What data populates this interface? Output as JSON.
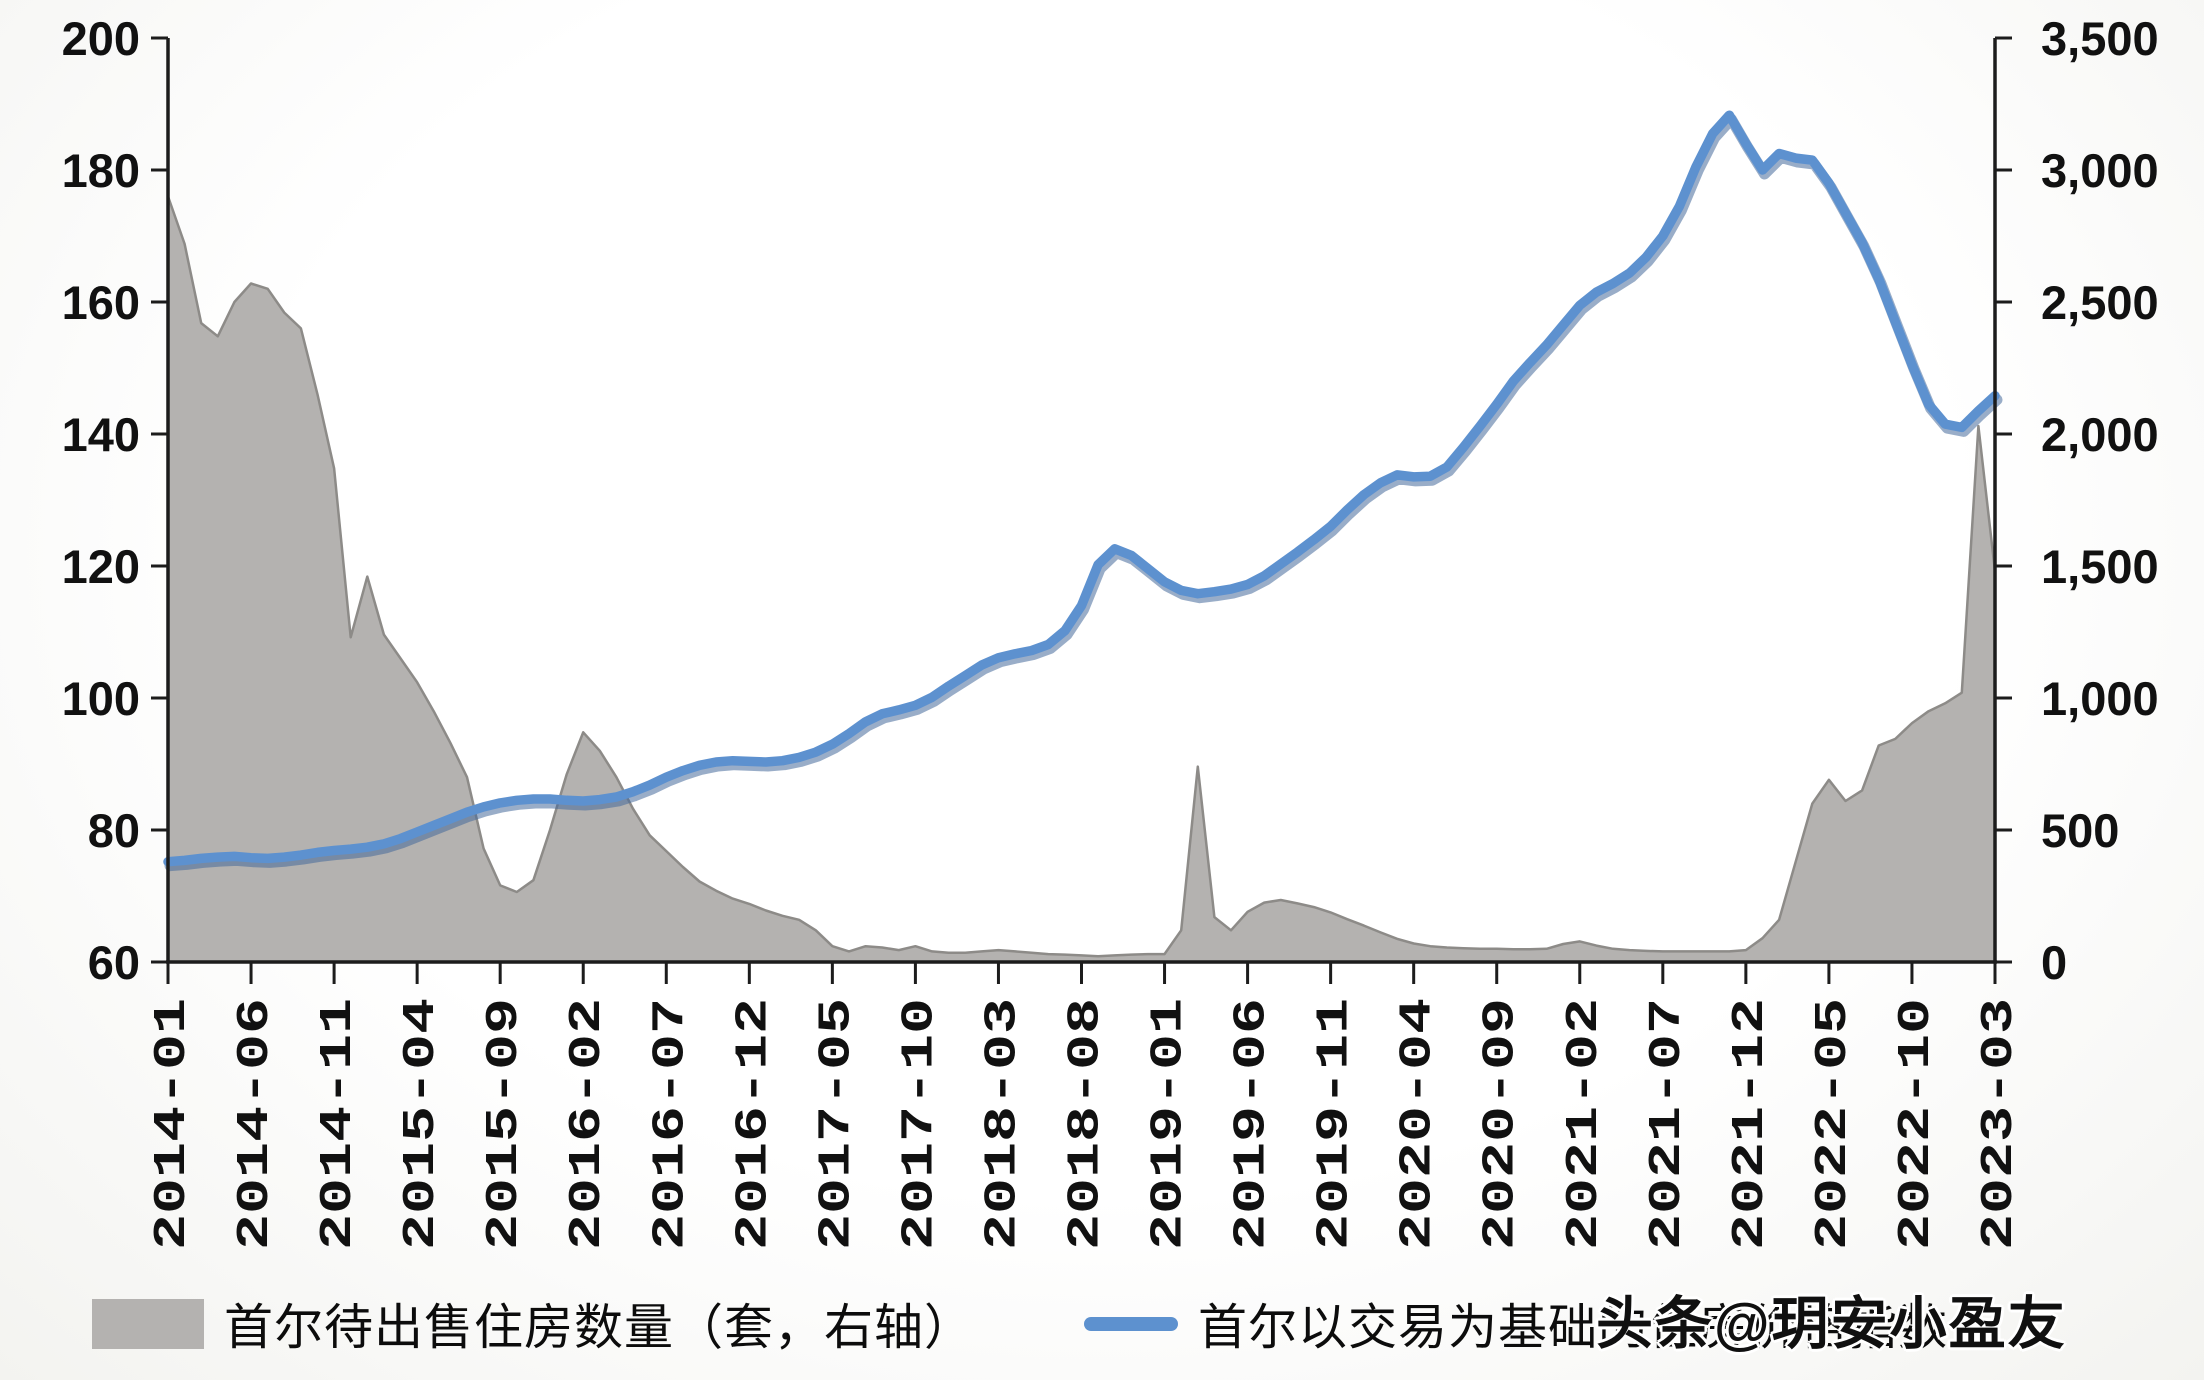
{
  "chart_data": {
    "type": "combo",
    "title": "",
    "grid": false,
    "legend_position": "bottom",
    "x_months": [
      "2014-01",
      "2014-02",
      "2014-03",
      "2014-04",
      "2014-05",
      "2014-06",
      "2014-07",
      "2014-08",
      "2014-09",
      "2014-10",
      "2014-11",
      "2014-12",
      "2015-01",
      "2015-02",
      "2015-03",
      "2015-04",
      "2015-05",
      "2015-06",
      "2015-07",
      "2015-08",
      "2015-09",
      "2015-10",
      "2015-11",
      "2015-12",
      "2016-01",
      "2016-02",
      "2016-03",
      "2016-04",
      "2016-05",
      "2016-06",
      "2016-07",
      "2016-08",
      "2016-09",
      "2016-10",
      "2016-11",
      "2016-12",
      "2017-01",
      "2017-02",
      "2017-03",
      "2017-04",
      "2017-05",
      "2017-06",
      "2017-07",
      "2017-08",
      "2017-09",
      "2017-10",
      "2017-11",
      "2017-12",
      "2018-01",
      "2018-02",
      "2018-03",
      "2018-04",
      "2018-05",
      "2018-06",
      "2018-07",
      "2018-08",
      "2018-09",
      "2018-10",
      "2018-11",
      "2018-12",
      "2019-01",
      "2019-02",
      "2019-03",
      "2019-04",
      "2019-05",
      "2019-06",
      "2019-07",
      "2019-08",
      "2019-09",
      "2019-10",
      "2019-11",
      "2019-12",
      "2020-01",
      "2020-02",
      "2020-03",
      "2020-04",
      "2020-05",
      "2020-06",
      "2020-07",
      "2020-08",
      "2020-09",
      "2020-10",
      "2020-11",
      "2020-12",
      "2021-01",
      "2021-02",
      "2021-03",
      "2021-04",
      "2021-05",
      "2021-06",
      "2021-07",
      "2021-08",
      "2021-09",
      "2021-10",
      "2021-11",
      "2021-12",
      "2022-01",
      "2022-02",
      "2022-03",
      "2022-04",
      "2022-05",
      "2022-06",
      "2022-07",
      "2022-08",
      "2022-09",
      "2022-10",
      "2022-11",
      "2022-12",
      "2023-01",
      "2023-02",
      "2023-03"
    ],
    "x_axis_tick_labels": [
      "2014-01",
      "2014-06",
      "2014-11",
      "2015-04",
      "2015-09",
      "2016-02",
      "2016-07",
      "2016-12",
      "2017-05",
      "2017-10",
      "2018-03",
      "2018-08",
      "2019-01",
      "2019-06",
      "2019-11",
      "2020-04",
      "2020-09",
      "2021-02",
      "2021-07",
      "2021-12",
      "2022-05",
      "2022-10",
      "2023-03"
    ],
    "left_axis": {
      "min": 60,
      "max": 200,
      "tick_step": 20,
      "tick_labels": [
        "60",
        "80",
        "100",
        "120",
        "140",
        "160",
        "180",
        "200"
      ]
    },
    "right_axis": {
      "min": 0,
      "max": 3500,
      "tick_step": 500,
      "tick_labels": [
        "0",
        "500",
        "1,000",
        "1,500",
        "2,000",
        "2,500",
        "3,000",
        "3,500"
      ]
    },
    "series": [
      {
        "name": "首尔待出售住房数量（套，右轴）",
        "type": "area",
        "axis": "right",
        "color": "#b4b2b0",
        "edge_color": "#8d8b88",
        "values": [
          2900,
          2720,
          2420,
          2370,
          2500,
          2570,
          2550,
          2460,
          2400,
          2150,
          1870,
          1230,
          1460,
          1240,
          1150,
          1060,
          950,
          830,
          700,
          430,
          290,
          265,
          310,
          500,
          710,
          870,
          800,
          700,
          580,
          480,
          420,
          360,
          305,
          270,
          240,
          220,
          195,
          175,
          160,
          120,
          60,
          40,
          60,
          55,
          45,
          60,
          40,
          35,
          35,
          40,
          45,
          40,
          35,
          30,
          28,
          25,
          22,
          25,
          28,
          30,
          30,
          120,
          740,
          170,
          120,
          190,
          225,
          235,
          222,
          208,
          188,
          162,
          138,
          112,
          88,
          70,
          60,
          55,
          52,
          50,
          50,
          48,
          48,
          50,
          68,
          78,
          62,
          50,
          45,
          42,
          40,
          40,
          40,
          40,
          40,
          45,
          90,
          160,
          380,
          600,
          690,
          610,
          650,
          820,
          845,
          905,
          950,
          980,
          1020,
          2030,
          1480
        ]
      },
      {
        "name": "首尔以交易为基础的住房价格指数",
        "type": "line",
        "axis": "left",
        "color": "#5d91cf",
        "shadow_color": "#46699b",
        "values": [
          75.2,
          75.4,
          75.7,
          75.9,
          76.0,
          75.8,
          75.7,
          75.9,
          76.2,
          76.6,
          76.9,
          77.1,
          77.4,
          77.9,
          78.7,
          79.7,
          80.7,
          81.7,
          82.7,
          83.5,
          84.1,
          84.5,
          84.7,
          84.7,
          84.5,
          84.4,
          84.6,
          85.0,
          85.8,
          86.8,
          88.0,
          89.0,
          89.8,
          90.3,
          90.5,
          90.4,
          90.3,
          90.5,
          91.0,
          91.8,
          93.0,
          94.6,
          96.4,
          97.6,
          98.2,
          98.9,
          100.1,
          101.8,
          103.4,
          105.0,
          106.1,
          106.7,
          107.2,
          108.1,
          110.2,
          114.0,
          120.2,
          122.6,
          121.6,
          119.6,
          117.6,
          116.3,
          115.8,
          116.1,
          116.5,
          117.2,
          118.5,
          120.3,
          122.1,
          124.0,
          126.0,
          128.5,
          130.8,
          132.6,
          133.8,
          133.5,
          133.6,
          135.0,
          138.0,
          141.2,
          144.5,
          148.0,
          150.8,
          153.5,
          156.5,
          159.5,
          161.5,
          162.8,
          164.4,
          166.8,
          170.0,
          174.5,
          180.5,
          185.5,
          188.3,
          184.0,
          180.0,
          182.5,
          181.8,
          181.5,
          178.0,
          173.5,
          169.0,
          163.5,
          157.0,
          150.5,
          144.5,
          141.5,
          141.0,
          143.5,
          145.8
        ]
      }
    ]
  },
  "legend": {
    "area_label": "首尔待出售住房数量（套，右轴）",
    "line_label": "首尔以交易为基础的住房价格指数"
  },
  "watermark": {
    "text": "头条@玥安小盈友"
  },
  "colors": {
    "axis": "#1c1c1c",
    "tick_text": "#111111",
    "area_fill": "#b4b2b0",
    "area_edge": "#8d8b88",
    "line_blue": "#5d91cf",
    "line_shadow": "#46699b",
    "background": "#fbfbf9"
  }
}
